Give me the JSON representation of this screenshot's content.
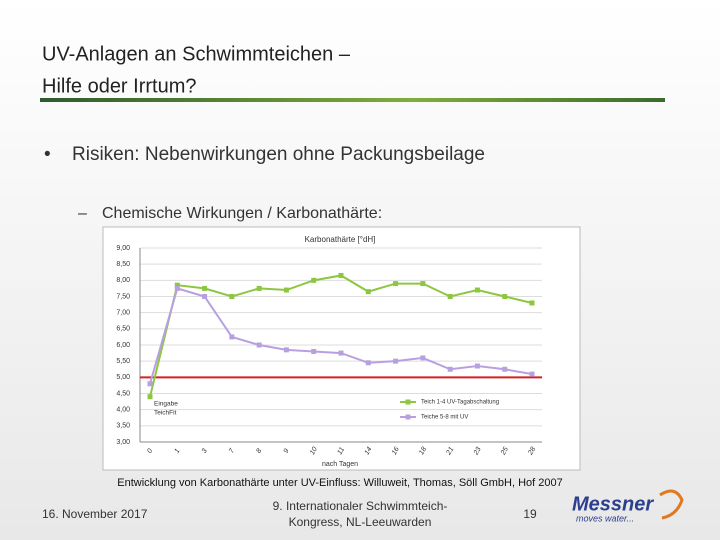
{
  "slide": {
    "title": [
      "UV-Anlagen an Schwimmteichen –",
      "Hilfe oder Irrtum?"
    ],
    "bullet": "Risiken: Nebenwirkungen ohne Packungsbeilage",
    "sub_bullet": "Chemische Wirkungen / Karbonathärte:",
    "caption": "Entwicklung von Karbonathärte unter UV-Einfluss: Willuweit, Thomas, Söll GmbH, Hof 2007",
    "footer": {
      "date": "16. November 2017",
      "event": [
        "9. Internationaler Schwimmteich-",
        "Kongress, NL-Leeuwarden"
      ],
      "page": "19",
      "logo": "Messner",
      "logo_tagline": "moves water..."
    }
  },
  "chart_data": {
    "type": "line",
    "title": "Karbonathärte [°dH]",
    "xlabel": "nach Tagen",
    "categories": [
      "0",
      "1",
      "3",
      "7",
      "8",
      "9",
      "10",
      "11",
      "14",
      "16",
      "18",
      "21",
      "23",
      "25",
      "28"
    ],
    "series": [
      {
        "name": "Teich 1-4 UV-Tagabschaltung",
        "color": "#8dc63f",
        "values": [
          4.4,
          7.85,
          7.75,
          7.5,
          7.75,
          7.7,
          8.0,
          8.15,
          7.65,
          7.9,
          7.9,
          7.5,
          7.7,
          7.5,
          7.3
        ]
      },
      {
        "name": "Teiche 5-8 mit UV",
        "color": "#b8a0e0",
        "values": [
          4.8,
          7.75,
          7.5,
          6.25,
          6.0,
          5.85,
          5.8,
          5.75,
          5.45,
          5.5,
          5.6,
          5.25,
          5.35,
          5.25,
          5.1
        ]
      }
    ],
    "threshold": 5,
    "threshold_color": "#d42020",
    "annotation": [
      "Eingabe",
      "TeichFit"
    ],
    "ylim": [
      3,
      9
    ],
    "yticks": [
      {
        "value": 3,
        "label": "3,00"
      },
      {
        "value": 3.5,
        "label": "3,50"
      },
      {
        "value": 4,
        "label": "4,00"
      },
      {
        "value": 4.5,
        "label": "4,50"
      },
      {
        "value": 5,
        "label": "5,00"
      },
      {
        "value": 5.5,
        "label": "5,50"
      },
      {
        "value": 6,
        "label": "6,00"
      },
      {
        "value": 6.5,
        "label": "6,50"
      },
      {
        "value": 7,
        "label": "7,00"
      },
      {
        "value": 7.5,
        "label": "7,50"
      },
      {
        "value": 8,
        "label": "8,00"
      },
      {
        "value": 8.5,
        "label": "8,50"
      },
      {
        "value": 9,
        "label": "9,00"
      }
    ],
    "grid": true
  }
}
